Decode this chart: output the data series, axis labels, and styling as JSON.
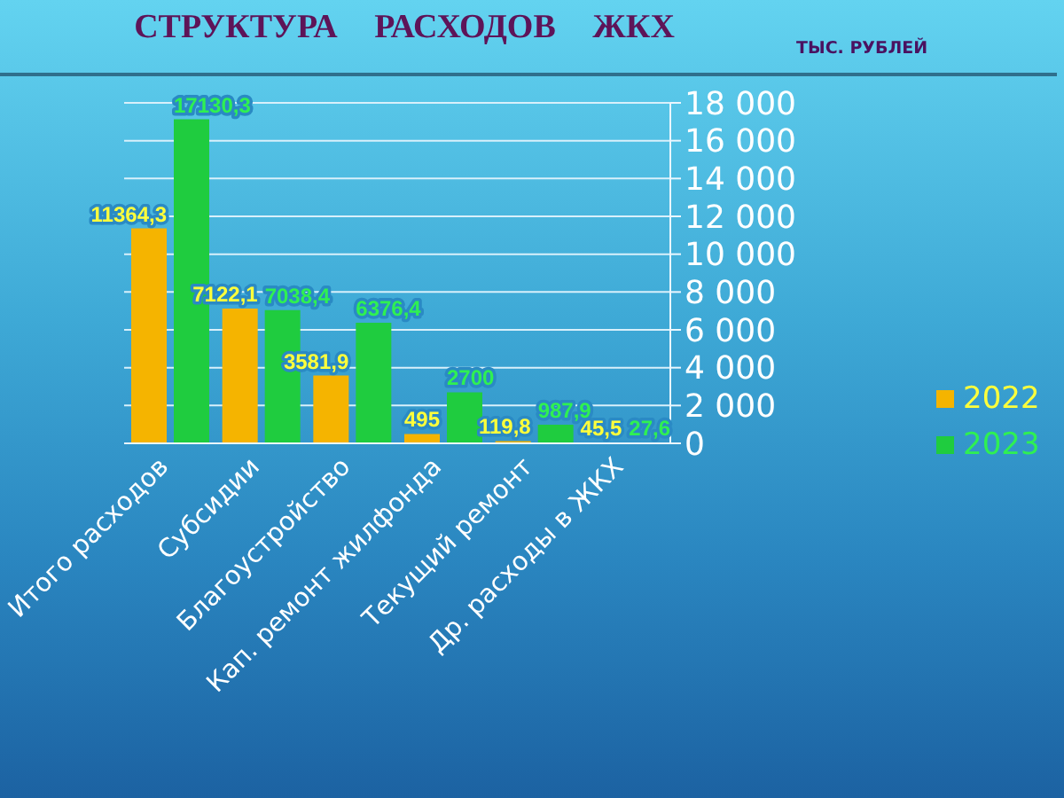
{
  "chart_data": {
    "type": "bar",
    "title": "СТРУКТУРА РАСХОДОВ ЖКХ",
    "ylabel": "ТЫС. РУБЛЕЙ",
    "categories": [
      "Итого расходов",
      "Субсидии",
      "Благоустройство",
      "Кап. ремонт жилфонда",
      "Текущий ремонт",
      "Др. расходы в ЖКХ"
    ],
    "series": [
      {
        "name": "2022",
        "color": "#f5b400",
        "values": [
          11364.3,
          7122.1,
          3581.9,
          495,
          119.8,
          45.5
        ],
        "value_labels": [
          "11364,3",
          "7122,1",
          "3581,9",
          "495",
          "119,8",
          "45,5"
        ]
      },
      {
        "name": "2023",
        "color": "#1fcc3f",
        "values": [
          17130.3,
          7038.4,
          6376.4,
          2700,
          987.9,
          27.6
        ],
        "value_labels": [
          "17130,3",
          "7038,4",
          "6376,4",
          "2700",
          "987,9",
          "27,6"
        ]
      }
    ],
    "ylim": [
      0,
      18000
    ],
    "yticks": [
      0,
      {
        "value": 2000,
        "label": "2 000"
      },
      {
        "value": 4000,
        "label": "4 000"
      },
      {
        "value": 6000,
        "label": "6 000"
      },
      {
        "value": 8000,
        "label": "8 000"
      },
      {
        "value": 10000,
        "label": "10 000"
      },
      {
        "value": 12000,
        "label": "12 000"
      },
      {
        "value": 14000,
        "label": "14 000"
      },
      {
        "value": 16000,
        "label": "16 000"
      },
      {
        "value": 18000,
        "label": "18 000"
      }
    ],
    "grid": "y",
    "legend": "bottom right"
  }
}
